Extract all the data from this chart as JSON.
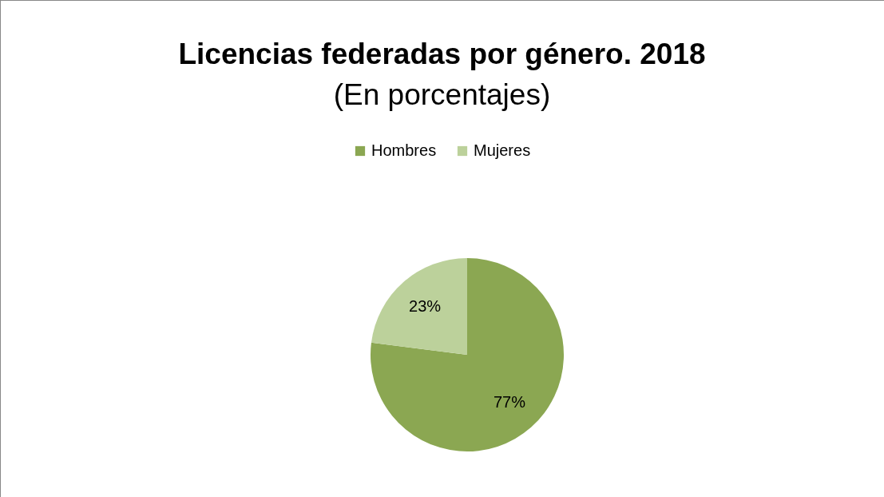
{
  "chart_data": {
    "type": "pie",
    "title": "Licencias federadas por género. 2018",
    "subtitle": "(En porcentajes)",
    "categories": [
      "Hombres",
      "Mujeres"
    ],
    "values": [
      77,
      23
    ],
    "colors": [
      "#8ba752",
      "#bcd19b"
    ],
    "value_labels": [
      "77%",
      "23%"
    ],
    "legend": "top"
  }
}
